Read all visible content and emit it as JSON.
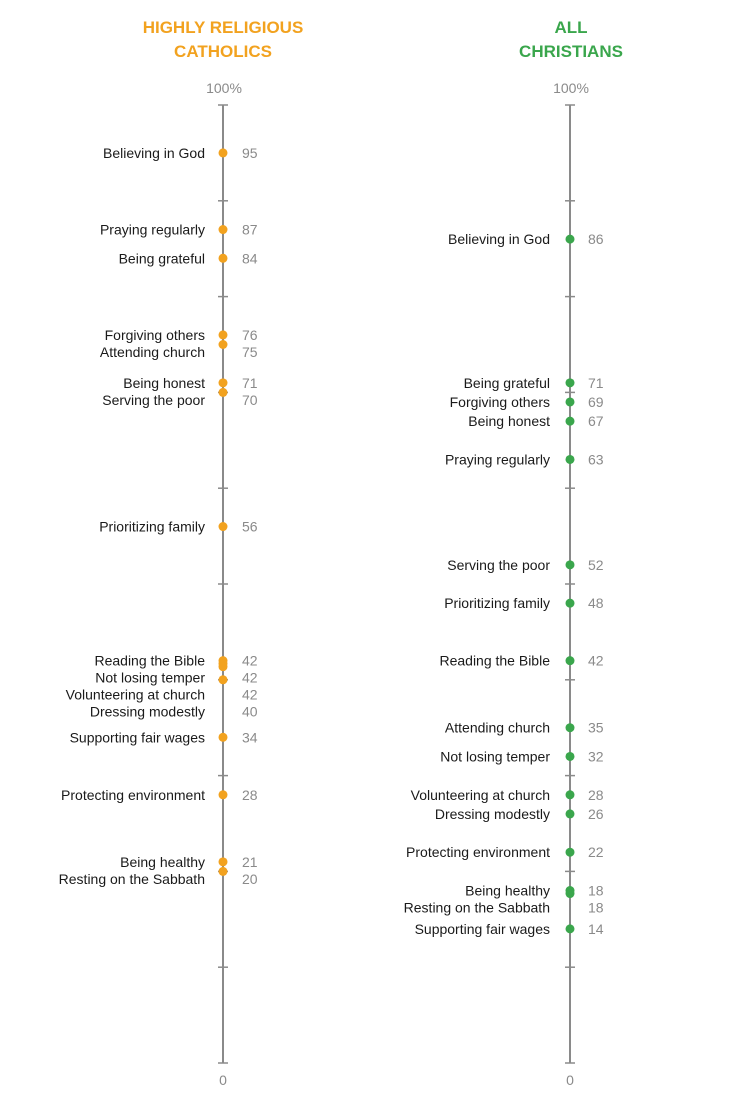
{
  "colors": {
    "catholic": "#f2a21f",
    "christian": "#3aa64c",
    "axis": "#8a8a8a"
  },
  "chart_data": [
    {
      "type": "scatter",
      "title": [
        "HIGHLY RELIGIOUS",
        "CATHOLICS"
      ],
      "top_label": "100%",
      "bottom_label": "0",
      "ylim": [
        0,
        100
      ],
      "color": "catholic",
      "points": [
        {
          "label": "Believing in God",
          "value": 95
        },
        {
          "label": "Praying regularly",
          "value": 87
        },
        {
          "label": "Being grateful",
          "value": 84
        },
        {
          "label": "Forgiving others",
          "value": 76
        },
        {
          "label": "Attending church",
          "value": 75
        },
        {
          "label": "Being honest",
          "value": 71
        },
        {
          "label": "Serving the poor",
          "value": 70
        },
        {
          "label": "Prioritizing family",
          "value": 56
        },
        {
          "label": "Reading the Bible",
          "value": 42
        },
        {
          "label": "Not losing temper",
          "value": 42
        },
        {
          "label": "Volunteering at church",
          "value": 42
        },
        {
          "label": "Dressing modestly",
          "value": 40
        },
        {
          "label": "Supporting fair wages",
          "value": 34
        },
        {
          "label": "Protecting environment",
          "value": 28
        },
        {
          "label": "Being healthy",
          "value": 21
        },
        {
          "label": "Resting on the Sabbath",
          "value": 20
        }
      ]
    },
    {
      "type": "scatter",
      "title": [
        "ALL",
        "CHRISTIANS"
      ],
      "top_label": "100%",
      "bottom_label": "0",
      "ylim": [
        0,
        100
      ],
      "color": "christian",
      "points": [
        {
          "label": "Believing in God",
          "value": 86
        },
        {
          "label": "Being grateful",
          "value": 71
        },
        {
          "label": "Forgiving others",
          "value": 69
        },
        {
          "label": "Being honest",
          "value": 67
        },
        {
          "label": "Praying regularly",
          "value": 63
        },
        {
          "label": "Serving the poor",
          "value": 52
        },
        {
          "label": "Prioritizing family",
          "value": 48
        },
        {
          "label": "Reading the Bible",
          "value": 42
        },
        {
          "label": "Attending church",
          "value": 35
        },
        {
          "label": "Not losing temper",
          "value": 32
        },
        {
          "label": "Volunteering at church",
          "value": 28
        },
        {
          "label": "Dressing modestly",
          "value": 26
        },
        {
          "label": "Protecting environment",
          "value": 22
        },
        {
          "label": "Being healthy",
          "value": 18
        },
        {
          "label": "Resting on the Sabbath",
          "value": 18
        },
        {
          "label": "Supporting fair wages",
          "value": 14
        }
      ]
    }
  ]
}
